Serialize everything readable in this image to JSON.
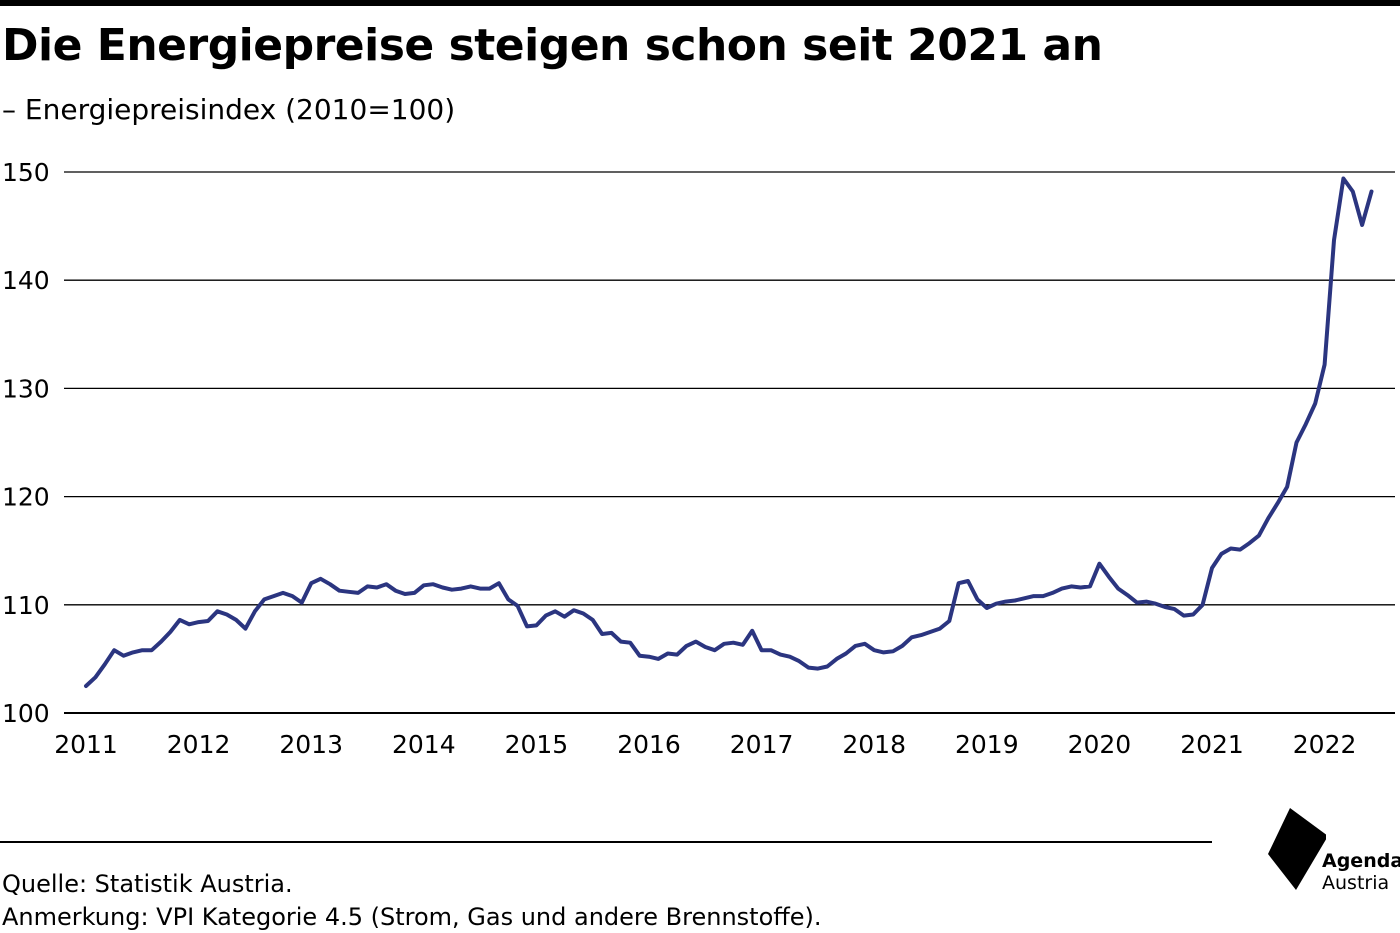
{
  "header": {
    "title": "Die Energiepreise steigen schon seit 2021 an",
    "subtitle": "– Energiepreisindex (2010=100)"
  },
  "footer": {
    "source": "Quelle: Statistik Austria.",
    "note": "Anmerkung: VPI Kategorie 4.5 (Strom, Gas und andere Brennstoffe)."
  },
  "logo": {
    "word1": "Agenda",
    "word2": "Austria",
    "icon": "agenda-austria-logo-mark"
  },
  "colors": {
    "line": "#2b3580",
    "grid": "#000000",
    "text": "#000000"
  },
  "chart_data": {
    "type": "line",
    "title": "Die Energiepreise steigen schon seit 2021 an",
    "subtitle": "– Energiepreisindex (2010=100)",
    "xlabel": "",
    "ylabel": "",
    "ylim": [
      100,
      150
    ],
    "yticks": [
      100,
      110,
      120,
      130,
      140,
      150
    ],
    "xticks": [
      "2011",
      "2012",
      "2013",
      "2014",
      "2015",
      "2016",
      "2017",
      "2018",
      "2019",
      "2020",
      "2021",
      "2022"
    ],
    "grid": "horizontal",
    "legend": "none",
    "x_start": "2011-01",
    "x_frequency": "monthly",
    "series": [
      {
        "values": [
          102.5,
          103.3,
          104.5,
          105.8,
          105.3,
          105.6,
          105.8,
          105.8,
          106.6,
          107.5,
          108.6,
          108.2,
          108.4,
          108.5,
          109.4,
          109.1,
          108.6,
          107.8,
          109.4,
          110.5,
          110.8,
          111.1,
          110.8,
          110.2,
          112.0,
          112.4,
          111.9,
          111.3,
          111.2,
          111.1,
          111.7,
          111.6,
          111.9,
          111.3,
          111.0,
          111.1,
          111.8,
          111.9,
          111.6,
          111.4,
          111.5,
          111.7,
          111.5,
          111.5,
          112.0,
          110.5,
          109.9,
          108.0,
          108.1,
          109.0,
          109.4,
          108.9,
          109.5,
          109.2,
          108.6,
          107.3,
          107.4,
          106.6,
          106.5,
          105.3,
          105.2,
          105.0,
          105.5,
          105.4,
          106.2,
          106.6,
          106.1,
          105.8,
          106.4,
          106.5,
          106.3,
          107.6,
          105.8,
          105.8,
          105.4,
          105.2,
          104.8,
          104.2,
          104.1,
          104.3,
          105.0,
          105.5,
          106.2,
          106.4,
          105.8,
          105.6,
          105.7,
          106.2,
          107.0,
          107.2,
          107.5,
          107.8,
          108.5,
          112.0,
          112.2,
          110.5,
          109.7,
          110.1,
          110.3,
          110.4,
          110.6,
          110.8,
          110.8,
          111.1,
          111.5,
          111.7,
          111.6,
          111.7,
          113.8,
          112.6,
          111.5,
          110.9,
          110.2,
          110.3,
          110.1,
          109.8,
          109.6,
          109.0,
          109.1,
          110.0,
          113.4,
          114.7,
          115.2,
          115.1,
          115.7,
          116.4,
          118.0,
          119.4,
          120.9,
          125.0,
          126.7,
          128.6,
          132.2,
          143.7,
          149.4,
          148.2,
          145.1,
          148.2
        ]
      }
    ]
  }
}
